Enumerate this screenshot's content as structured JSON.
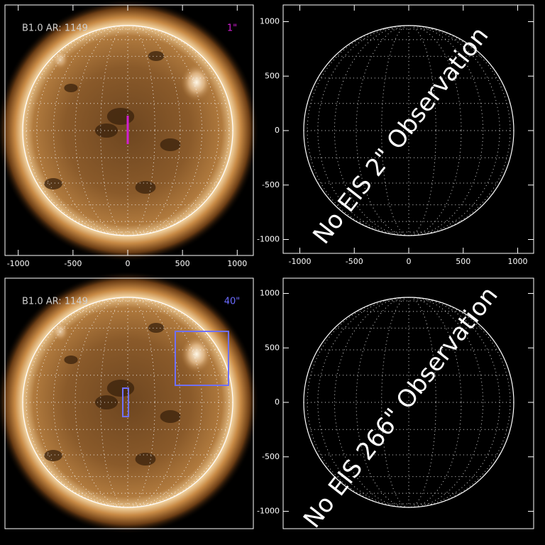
{
  "panels": [
    {
      "annotation": "B1.0 AR: 1149",
      "scale_label": "1\"",
      "xticks": [
        -1000,
        -500,
        0,
        500,
        1000
      ]
    },
    {
      "message": "No EIS 2\" Observation",
      "xticks": [
        -1000,
        -500,
        0,
        500,
        1000
      ],
      "yticks": [
        1000,
        500,
        0,
        -500,
        -1000
      ]
    },
    {
      "annotation": "B1.0 AR: 1149",
      "scale_label": "40\""
    },
    {
      "message": "No EIS 266\" Observation",
      "yticks": [
        1000,
        500,
        0,
        -500,
        -1000
      ]
    }
  ]
}
